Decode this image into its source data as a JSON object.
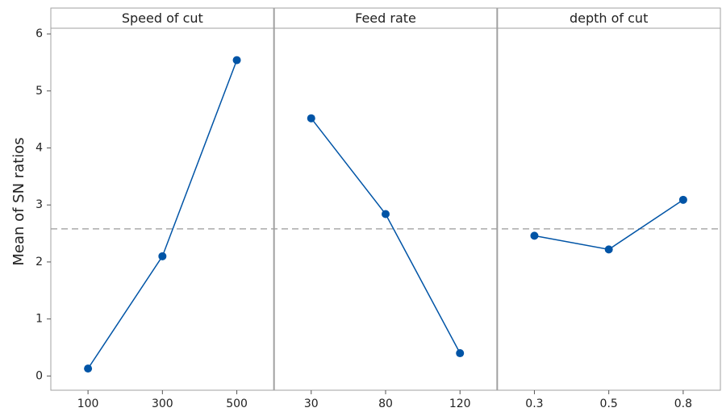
{
  "chart_data": {
    "type": "line",
    "ylabel": "Mean of SN ratios",
    "ylim": [
      -0.25,
      6.1
    ],
    "yticks": [
      0,
      1,
      2,
      3,
      4,
      5,
      6
    ],
    "reference_line": 2.58,
    "color": "#0054a6",
    "panels": [
      {
        "title": "Speed of cut",
        "categories": [
          "100",
          "300",
          "500"
        ],
        "values": [
          0.13,
          2.1,
          5.54
        ]
      },
      {
        "title": "Feed rate",
        "categories": [
          "30",
          "80",
          "120"
        ],
        "values": [
          4.52,
          2.84,
          0.4
        ]
      },
      {
        "title": "depth of cut",
        "categories": [
          "0.3",
          "0.5",
          "0.8"
        ],
        "values": [
          2.46,
          2.22,
          3.09
        ]
      }
    ]
  }
}
